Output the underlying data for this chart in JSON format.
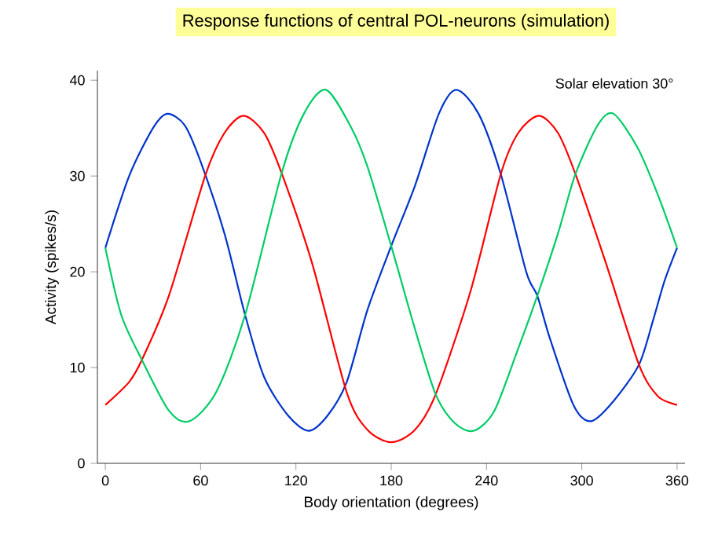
{
  "chart_data": {
    "type": "line",
    "title": "Response functions of central POL-neurons (simulation)",
    "xlabel": "Body orientation (degrees)",
    "ylabel": "Activity (spikes/s)",
    "annotations": [
      "Solar elevation 30°"
    ],
    "xlim": [
      -5,
      365
    ],
    "ylim": [
      0,
      41
    ],
    "xticks": [
      0,
      60,
      120,
      180,
      240,
      300,
      360
    ],
    "yticks": [
      0,
      10,
      20,
      30,
      40
    ],
    "marker": "none",
    "line_style": "solid",
    "series": [
      {
        "color": "#0033cc",
        "x": [
          0,
          15,
          30,
          39,
          50,
          60,
          75,
          88,
          100,
          115,
          128,
          140,
          152,
          165,
          180,
          195,
          210,
          221,
          235,
          249,
          265,
          272,
          280,
          295,
          306,
          320,
          336,
          345,
          352,
          360
        ],
        "values": [
          22.5,
          30,
          35,
          36.5,
          35.3,
          31.5,
          24,
          15.5,
          9,
          5,
          3.4,
          5,
          8.5,
          16,
          22.7,
          29,
          36.5,
          39,
          36.5,
          30.2,
          20,
          17.5,
          13,
          6,
          4.4,
          6.5,
          10.3,
          15,
          19,
          22.5
        ]
      },
      {
        "color": "#ff0000",
        "x": [
          0,
          15,
          23,
          40,
          63,
          75,
          87,
          100,
          111,
          130,
          152,
          165,
          180,
          195,
          208,
          230,
          249,
          260,
          273,
          285,
          296,
          315,
          336,
          348,
          360
        ],
        "values": [
          6.1,
          8.5,
          10.8,
          17.5,
          30.1,
          34.5,
          36.3,
          34.5,
          30.3,
          21,
          7.4,
          3.5,
          2.2,
          3.5,
          7.2,
          18,
          30.2,
          34.5,
          36.3,
          34.5,
          30.2,
          21,
          10.3,
          7,
          6.1
        ]
      },
      {
        "color": "#00cc66",
        "x": [
          0,
          10,
          23,
          40,
          53,
          70,
          88,
          111,
          125,
          139,
          155,
          165,
          180,
          195,
          208,
          220,
          232,
          245,
          260,
          272,
          285,
          296,
          310,
          320,
          335,
          348,
          360
        ],
        "values": [
          22.5,
          15.5,
          10.8,
          5.5,
          4.4,
          7.5,
          15.5,
          30.3,
          36.5,
          39,
          35,
          31,
          22.7,
          14,
          7.2,
          4.2,
          3.4,
          5.5,
          12,
          17.5,
          24,
          30.2,
          35.3,
          36.5,
          33,
          28,
          22.5
        ]
      }
    ]
  }
}
